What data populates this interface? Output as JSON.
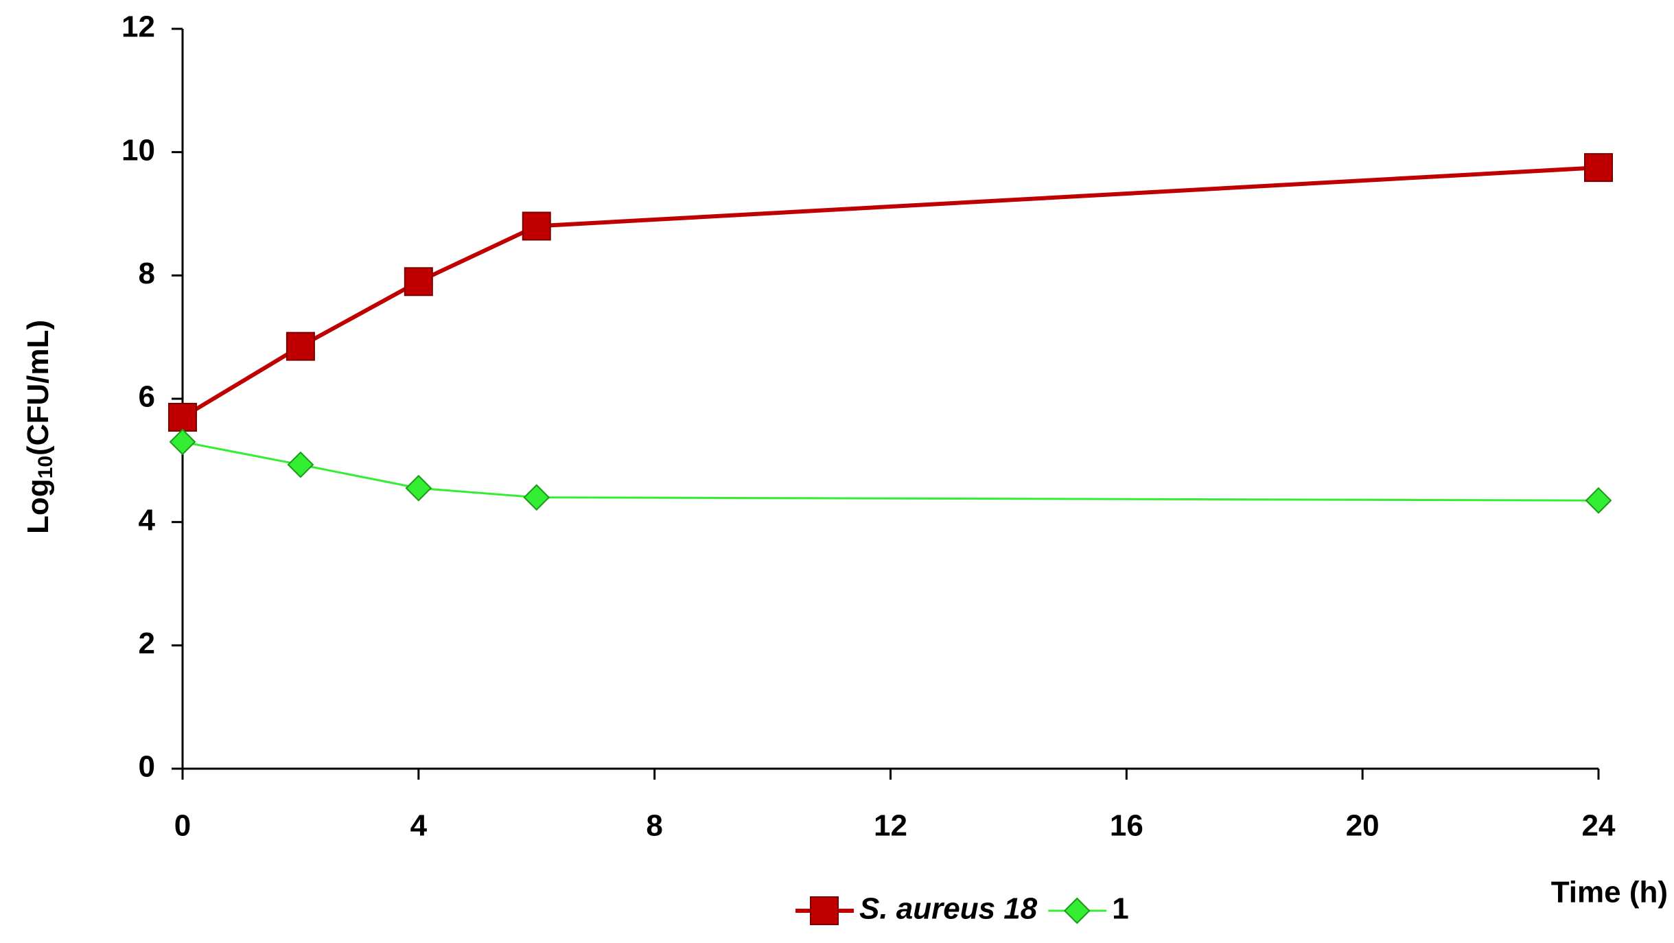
{
  "chart_data": {
    "type": "line",
    "y_label": [
      "Log",
      "10",
      "(CFU/mL)"
    ],
    "x_label": "Time (h)",
    "x": [
      0,
      2,
      4,
      6,
      24
    ],
    "series": [
      {
        "name": "S. aureus 18",
        "color": "#c00000",
        "marker": "square",
        "values": [
          5.7,
          6.85,
          7.9,
          8.8,
          9.75
        ]
      },
      {
        "name": "1",
        "color": "#33ee33",
        "marker": "diamond",
        "values": [
          5.3,
          4.93,
          4.55,
          4.4,
          4.35
        ]
      }
    ],
    "xlim": [
      0,
      24
    ],
    "xticks": [
      0,
      4,
      8,
      12,
      16,
      20,
      24
    ],
    "ylim": [
      0,
      12
    ],
    "yticks": [
      0,
      2,
      4,
      6,
      8,
      10,
      12
    ],
    "grid": false,
    "legend": "bottom"
  }
}
